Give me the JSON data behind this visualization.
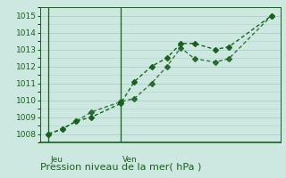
{
  "title": "Pression niveau de la mer( hPa )",
  "bg_color": "#cce8e0",
  "grid_color": "#b0d4cc",
  "line_color": "#1a6020",
  "ylim": [
    1007.5,
    1015.5
  ],
  "yticks": [
    1008,
    1009,
    1010,
    1011,
    1012,
    1013,
    1014,
    1015
  ],
  "xlim": [
    0,
    14
  ],
  "jeu_x": 0.5,
  "ven_x": 4.7,
  "vline_x": [
    0.5,
    4.7
  ],
  "series1_x": [
    0.5,
    1.3,
    2.1,
    3.0,
    4.7,
    5.5,
    6.5,
    7.4,
    8.2,
    9.0,
    10.2,
    11.0,
    13.5
  ],
  "series1_y": [
    1008.0,
    1008.3,
    1008.75,
    1009.0,
    1009.8,
    1011.1,
    1012.0,
    1012.5,
    1013.35,
    1013.35,
    1013.0,
    1013.15,
    1015.0
  ],
  "series2_x": [
    0.5,
    1.3,
    2.1,
    3.0,
    4.7,
    5.5,
    6.5,
    7.4,
    8.2,
    9.0,
    10.2,
    11.0,
    13.5
  ],
  "series2_y": [
    1008.0,
    1008.3,
    1008.75,
    1009.3,
    1009.9,
    1010.1,
    1011.0,
    1012.0,
    1013.1,
    1012.45,
    1012.25,
    1012.45,
    1015.0
  ],
  "marker": "D",
  "markersize": 3,
  "linewidth": 1.0,
  "label_fontsize": 8,
  "tick_fontsize": 6.5,
  "jeu_label": "Jeu",
  "ven_label": "Ven"
}
